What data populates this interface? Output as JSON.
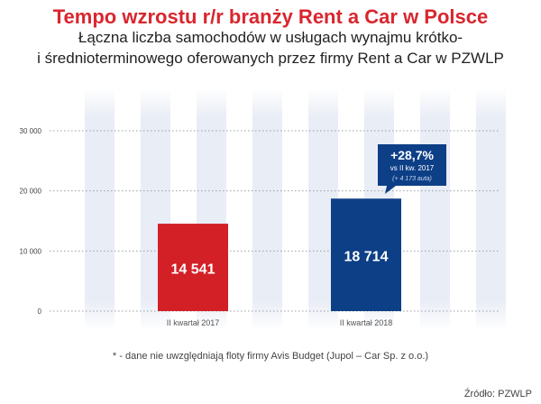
{
  "header": {
    "title": "Tempo wzrostu r/r branży Rent a Car w Polsce",
    "subtitle_line1": "Łączna liczba samochodów w usługach wynajmu krótko-",
    "subtitle_line2": "i średnioterminowego oferowanych przez firmy Rent a Car w PZWLP"
  },
  "chart_data": {
    "type": "bar",
    "title": "Tempo wzrostu r/r branży Rent a Car w Polsce",
    "categories": [
      "II kwartał 2017",
      "II kwartał 2018"
    ],
    "values": [
      14541,
      18714
    ],
    "value_labels": [
      "14 541",
      "18 714"
    ],
    "bar_colors": [
      "#d32027",
      "#0d3f86"
    ],
    "ylim": [
      0,
      30000
    ],
    "yticks": [
      0,
      10000,
      20000,
      30000
    ],
    "ytick_labels": [
      "0",
      "10 000",
      "20 000",
      "30 000"
    ],
    "grid": true,
    "xlabel": "",
    "ylabel": "",
    "annotation": {
      "main": "+28,7%",
      "line2": "vs II kw. 2017",
      "line3": "(+ 4 173 auta)",
      "color": "#0d3f86"
    }
  },
  "footnote": "* - dane nie uwzględniają floty firmy Avis Budget (Jupol – Car Sp. z o.o.)",
  "source": "Źródło: PZWLP"
}
